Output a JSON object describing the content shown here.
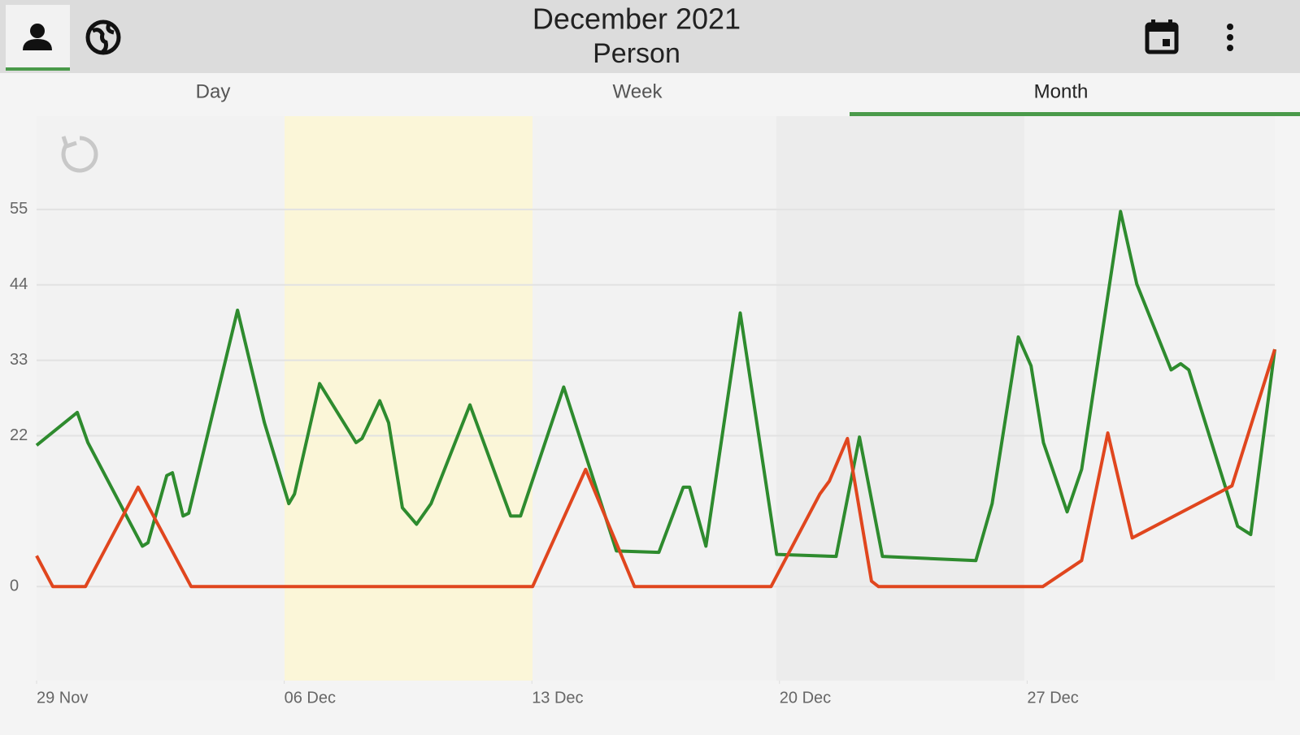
{
  "header": {
    "title": "December 2021",
    "subtitle": "Person"
  },
  "tabs": [
    "Day",
    "Week",
    "Month"
  ],
  "chart_data": {
    "type": "line",
    "xlim": [
      0,
      35
    ],
    "ylim": [
      -13.7,
      68.6
    ],
    "xticks": [
      {
        "value": 0,
        "label": "29 Nov"
      },
      {
        "value": 7,
        "label": "06 Dec"
      },
      {
        "value": 14,
        "label": "13 Dec"
      },
      {
        "value": 21,
        "label": "20 Dec"
      },
      {
        "value": 28,
        "label": "27 Dec"
      }
    ],
    "yticks": [
      0,
      22,
      33,
      44,
      55
    ],
    "grid": true,
    "series": [
      {
        "color": "#2e8b2e",
        "x": [
          0,
          1.15,
          1.45,
          2.99,
          3.15,
          3.68,
          3.84,
          4.14,
          4.3,
          5.68,
          6.44,
          7.13,
          7.29,
          8.0,
          9.03,
          9.2,
          9.7,
          9.95,
          10.34,
          10.74,
          11.15,
          12.25,
          13.4,
          13.68,
          14.9,
          16.39,
          17.59,
          18.28,
          18.46,
          18.92,
          19.89,
          20.92,
          22.6,
          23.26,
          23.91,
          26.55,
          27.01,
          27.75,
          28.11,
          28.46,
          29.13,
          29.54,
          30.64,
          31.1,
          32.07,
          32.34,
          32.57,
          33.95,
          34.32,
          35
        ],
        "values": [
          20.6,
          25.4,
          21.0,
          5.9,
          6.4,
          16.2,
          16.6,
          10.3,
          10.7,
          40.3,
          23.9,
          12.1,
          13.5,
          29.6,
          21.0,
          21.6,
          27.1,
          23.9,
          11.5,
          9.1,
          12.1,
          26.5,
          10.3,
          10.3,
          29.1,
          5.2,
          5.0,
          14.5,
          14.5,
          5.9,
          39.9,
          4.7,
          4.4,
          21.8,
          4.4,
          3.8,
          12.1,
          36.4,
          32.2,
          21.0,
          10.9,
          17.1,
          54.7,
          44.1,
          31.6,
          32.5,
          31.6,
          8.8,
          7.6,
          34.6
        ]
      },
      {
        "color": "#e0461e",
        "x": [
          0,
          0.46,
          1.38,
          2.87,
          4.37,
          14.02,
          15.52,
          16.9,
          20.76,
          22.14,
          22.41,
          22.92,
          23.6,
          23.8,
          28.44,
          29.54,
          30.28,
          30.97,
          33.79,
          35
        ],
        "values": [
          4.5,
          0,
          0,
          14.5,
          0,
          0,
          17.1,
          0,
          0,
          13.5,
          15.4,
          21.6,
          0.8,
          0,
          0,
          3.8,
          22.4,
          7.1,
          14.7,
          34.6
        ]
      }
    ]
  }
}
